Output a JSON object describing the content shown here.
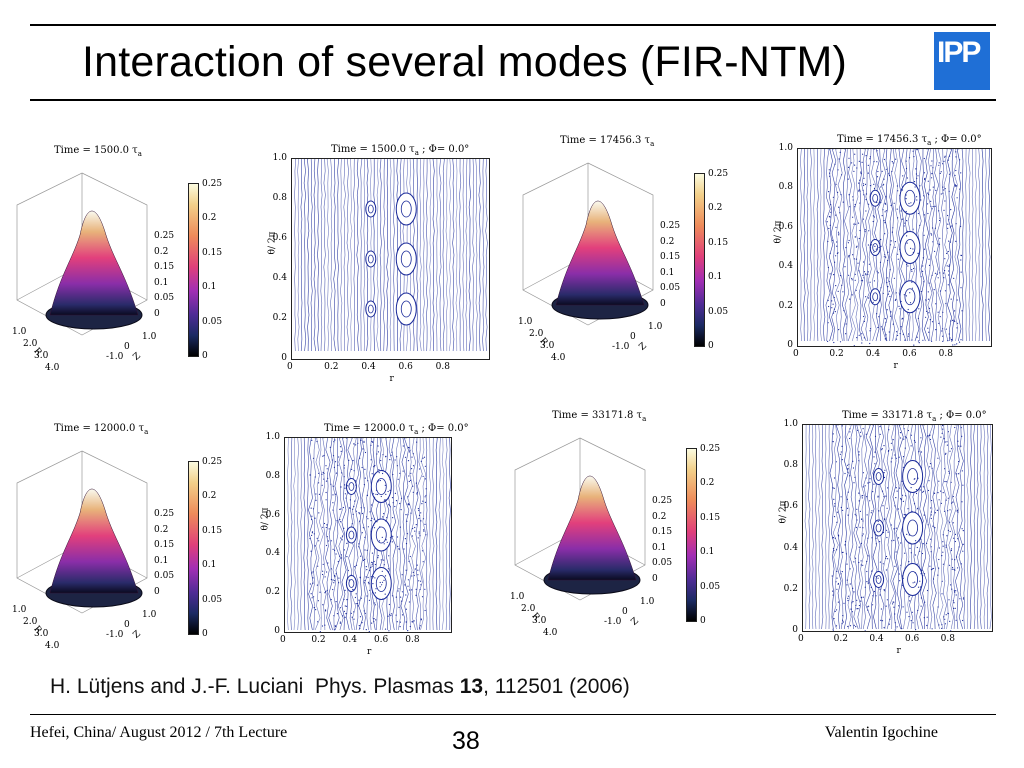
{
  "slide": {
    "title": "Interaction of several modes (FIR-NTM)",
    "logo_text": "IPP",
    "citation": {
      "authors": "H. Lütjens and J.-F. Luciani",
      "journal": "Phys. Plasmas",
      "volume": "13",
      "rest": ", 112501 (2006)"
    },
    "footer": {
      "left": "Hefei, China/ August 2012 / 7th Lecture",
      "page": "38",
      "right": "Valentin Igochine"
    }
  },
  "panels_3d": [
    {
      "title": "Time = 1500.0 τ",
      "sub": "a"
    },
    {
      "title": "Time = 17456.3 τ",
      "sub": "a"
    },
    {
      "title": "Time = 12000.0 τ",
      "sub": "a"
    },
    {
      "title": "Time = 33171.8 τ",
      "sub": "a"
    }
  ],
  "panels_poincare": [
    {
      "title": "Time = 1500.0 τ",
      "sub": "a",
      "phi": "; Φ= 0.0°"
    },
    {
      "title": "Time = 17456.3 τ",
      "sub": "a",
      "phi": "; Φ= 0.0°"
    },
    {
      "title": "Time = 12000.0 τ",
      "sub": "a",
      "phi": "; Φ= 0.0°"
    },
    {
      "title": "Time = 33171.8 τ",
      "sub": "a",
      "phi": "; Φ= 0.0°"
    }
  ],
  "axes": {
    "cbar_ticks": [
      "0.25",
      "0.2",
      "0.15",
      "0.1",
      "0.05",
      "0"
    ],
    "z_ticks": [
      "0.25",
      "0.2",
      "0.15",
      "0.1",
      "0.05",
      "0"
    ],
    "r_ticks": [
      "1.0",
      "2.0",
      "3.0",
      "4.0"
    ],
    "r_label": "R",
    "zz_ticks": [
      "1.0",
      "0",
      "-1.0"
    ],
    "zz_label": "Z",
    "y_ticks": [
      "1.0",
      "0.8",
      "0.6",
      "0.4",
      "0.2",
      "0"
    ],
    "x_ticks": [
      "0",
      "0.2",
      "0.4",
      "0.6",
      "0.8"
    ],
    "y_label": "θ/ 2π",
    "x_label": "r"
  },
  "colors": {
    "poincare_line": "#1a2a9a",
    "logo_bg": "#1f6fd6"
  }
}
